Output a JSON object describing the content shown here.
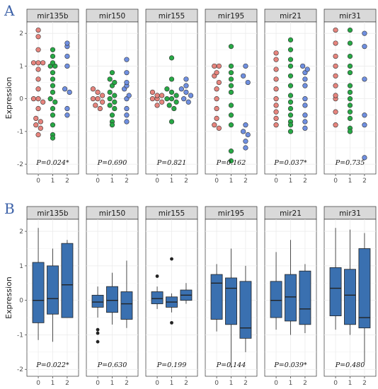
{
  "figure": {
    "panel_labels": [
      "A",
      "B"
    ],
    "colors": {
      "group0": "#e6847d",
      "group1": "#27a845",
      "group2": "#6f8fe0",
      "box": "#3a70b0",
      "strip": "#d9d9d9",
      "grid": "#ebebeb"
    }
  },
  "chart_data": [
    {
      "type": "scatter",
      "panel": "A",
      "ylabel": "Expression",
      "ylim": [
        -2.3,
        2.35
      ],
      "yticks": [
        -2,
        -1,
        0,
        1,
        2
      ],
      "x_categories": [
        "0",
        "1",
        "2"
      ],
      "facets": [
        {
          "name": "mir135b",
          "p": "P=0.024*",
          "groups": [
            [
              2.1,
              1.9,
              1.5,
              1.1,
              1.1,
              1.1,
              0.9,
              0.6,
              0.3,
              0.0,
              0.0,
              -0.1,
              -0.3,
              -0.6,
              -0.7,
              -0.8,
              -0.9,
              -1.1
            ],
            [
              1.5,
              1.3,
              1.1,
              1.0,
              1.0,
              0.8,
              0.6,
              0.4,
              0.2,
              0.0,
              -0.1,
              -0.3,
              -0.5,
              -0.8,
              -1.1,
              -1.2
            ],
            [
              1.7,
              1.6,
              1.3,
              1.0,
              0.3,
              0.2,
              -0.3,
              -0.5
            ]
          ]
        },
        {
          "name": "mir150",
          "p": "P=0.690",
          "groups": [
            [
              0.3,
              0.2,
              0.1,
              0.0,
              0.0,
              -0.1,
              -0.2,
              -0.3
            ],
            [
              0.8,
              0.6,
              0.5,
              0.4,
              0.2,
              0.1,
              0.0,
              -0.1,
              -0.2,
              -0.3,
              -0.5,
              -0.7,
              -0.8
            ],
            [
              1.2,
              0.8,
              0.5,
              0.4,
              0.3,
              0.1,
              0.0,
              -0.3,
              -0.5,
              -0.7
            ]
          ]
        },
        {
          "name": "mir155",
          "p": "P=0.821",
          "groups": [
            [
              0.2,
              0.1,
              0.1,
              0.0,
              0.0,
              -0.1,
              -0.2
            ],
            [
              1.25,
              0.6,
              0.3,
              0.2,
              0.1,
              0.0,
              0.0,
              -0.1,
              -0.2,
              -0.3,
              -0.7
            ],
            [
              0.6,
              0.4,
              0.3,
              0.2,
              0.1,
              0.0,
              -0.1
            ]
          ]
        },
        {
          "name": "mir195",
          "p": "P=0.162",
          "groups": [
            [
              1.0,
              1.0,
              0.8,
              0.7,
              0.5,
              0.3,
              0.0,
              -0.3,
              -0.6,
              -0.8,
              -0.9
            ],
            [
              1.6,
              1.0,
              0.8,
              0.6,
              0.4,
              0.2,
              -0.2,
              -0.5,
              -0.8,
              -1.6,
              -1.9
            ],
            [
              1.0,
              0.7,
              0.5,
              -0.8,
              -1.0,
              -1.1,
              -1.3,
              -1.5
            ]
          ]
        },
        {
          "name": "mir21",
          "p": "P=0.037*",
          "groups": [
            [
              1.4,
              1.2,
              0.9,
              0.6,
              0.3,
              0.0,
              -0.2,
              -0.4,
              -0.6,
              -0.8
            ],
            [
              1.8,
              1.5,
              1.2,
              1.0,
              0.7,
              0.4,
              0.1,
              -0.1,
              -0.3,
              -0.5,
              -0.7,
              -0.8,
              -1.0
            ],
            [
              1.0,
              0.9,
              0.8,
              0.6,
              0.4,
              0.0,
              -0.2,
              -0.5,
              -0.7,
              -0.9
            ]
          ]
        },
        {
          "name": "mir31",
          "p": "P=0.735",
          "groups": [
            [
              2.1,
              1.7,
              1.3,
              1.0,
              0.7,
              0.4,
              0.1,
              0.0,
              -0.4,
              -0.8
            ],
            [
              2.1,
              1.7,
              1.3,
              1.0,
              0.8,
              0.4,
              0.2,
              0.0,
              -0.2,
              -0.4,
              -0.6,
              -0.9,
              -1.0
            ],
            [
              2.0,
              1.6,
              0.6,
              -0.5,
              -0.8,
              -1.8
            ]
          ]
        }
      ]
    },
    {
      "type": "box",
      "panel": "B",
      "ylabel": "Expression",
      "ylim": [
        -2.2,
        2.35
      ],
      "yticks": [
        -2,
        -1,
        0,
        1,
        2
      ],
      "x_categories": [
        "0",
        "1",
        "2"
      ],
      "facets": [
        {
          "name": "mir135b",
          "p": "P=0.022*",
          "boxes": [
            {
              "min": -1.15,
              "q1": -0.65,
              "median": 0.0,
              "q3": 1.1,
              "max": 2.1,
              "outliers": []
            },
            {
              "min": -1.2,
              "q1": -0.4,
              "median": 0.05,
              "q3": 1.0,
              "max": 1.5,
              "outliers": []
            },
            {
              "min": -0.5,
              "q1": -0.5,
              "median": 0.45,
              "q3": 1.65,
              "max": 1.75,
              "outliers": []
            }
          ]
        },
        {
          "name": "mir150",
          "p": "P=0.630",
          "boxes": [
            {
              "min": -0.5,
              "q1": -0.2,
              "median": -0.05,
              "q3": 0.15,
              "max": 0.4,
              "outliers": [
                -0.85,
                -0.95,
                -1.2
              ]
            },
            {
              "min": -0.7,
              "q1": -0.35,
              "median": 0.0,
              "q3": 0.4,
              "max": 0.8,
              "outliers": []
            },
            {
              "min": -0.8,
              "q1": -0.55,
              "median": -0.1,
              "q3": 0.25,
              "max": 1.15,
              "outliers": []
            }
          ]
        },
        {
          "name": "mir155",
          "p": "P=0.199",
          "boxes": [
            {
              "min": -0.25,
              "q1": -0.1,
              "median": 0.05,
              "q3": 0.25,
              "max": 0.4,
              "outliers": [
                0.7
              ]
            },
            {
              "min": -0.35,
              "q1": -0.2,
              "median": -0.05,
              "q3": 0.1,
              "max": 0.2,
              "outliers": [
                1.2,
                -0.65
              ]
            },
            {
              "min": -0.1,
              "q1": 0.0,
              "median": 0.15,
              "q3": 0.3,
              "max": 0.5,
              "outliers": []
            }
          ]
        },
        {
          "name": "mir195",
          "p": "P=0.144",
          "boxes": [
            {
              "min": -0.9,
              "q1": -0.55,
              "median": 0.5,
              "q3": 0.75,
              "max": 1.05,
              "outliers": []
            },
            {
              "min": -1.95,
              "q1": -0.7,
              "median": 0.35,
              "q3": 0.65,
              "max": 1.5,
              "outliers": []
            },
            {
              "min": -1.5,
              "q1": -1.1,
              "median": -0.8,
              "q3": 0.55,
              "max": 1.0,
              "outliers": []
            }
          ]
        },
        {
          "name": "mir21",
          "p": "P=0.039*",
          "boxes": [
            {
              "min": -0.85,
              "q1": -0.5,
              "median": 0.0,
              "q3": 0.55,
              "max": 1.4,
              "outliers": []
            },
            {
              "min": -1.0,
              "q1": -0.6,
              "median": 0.1,
              "q3": 0.75,
              "max": 1.75,
              "outliers": []
            },
            {
              "min": -0.95,
              "q1": -0.7,
              "median": -0.25,
              "q3": 0.85,
              "max": 1.05,
              "outliers": []
            }
          ]
        },
        {
          "name": "mir31",
          "p": "P=0.480",
          "boxes": [
            {
              "min": -0.85,
              "q1": -0.45,
              "median": 0.35,
              "q3": 0.95,
              "max": 2.1,
              "outliers": []
            },
            {
              "min": -1.0,
              "q1": -0.7,
              "median": 0.15,
              "q3": 0.9,
              "max": 2.05,
              "outliers": []
            },
            {
              "min": -1.8,
              "q1": -0.8,
              "median": -0.5,
              "q3": 1.5,
              "max": 1.95,
              "outliers": []
            }
          ]
        }
      ]
    }
  ]
}
